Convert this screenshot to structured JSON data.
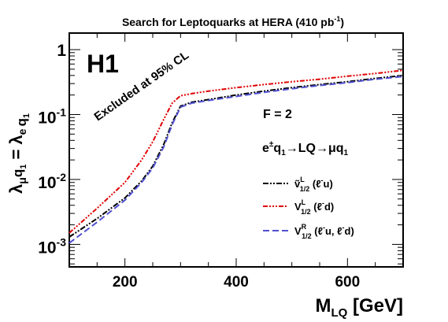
{
  "chart_data": {
    "type": "line",
    "title": "Search for Leptoquarks at HERA (410 pb",
    "title_sup": "-1",
    "title_end": ")",
    "logo": "H1",
    "annotation_excluded": "Excluded at 95% CL",
    "annotation_f": "F = 2",
    "process": {
      "a": "e",
      "a_sup": "±",
      "b": "q",
      "b_sub": "1",
      "arrow1": "→",
      "c": "LQ",
      "arrow2": "→",
      "d": "μq",
      "d_sub": "1"
    },
    "ylabel": {
      "lam1": "λ",
      "mu": "μ",
      "q1": "q",
      "q1_sub": "1",
      "eq": " = ",
      "lam2": "λ",
      "e": "e",
      "q2": "q",
      "q2_sub": "1"
    },
    "xlabel": {
      "m": "M",
      "m_sub": "LQ",
      "unit": " [GeV]"
    },
    "x_ticks": [
      "200",
      "400",
      "600"
    ],
    "x_tick_values": [
      200,
      400,
      600
    ],
    "y_ticks": [
      {
        "value": 1,
        "base": "1",
        "exp": ""
      },
      {
        "value": 0.1,
        "base": "10",
        "exp": "-1"
      },
      {
        "value": 0.01,
        "base": "10",
        "exp": "-2"
      },
      {
        "value": 0.001,
        "base": "10",
        "exp": "-3"
      }
    ],
    "xlim": [
      100,
      700
    ],
    "ylim": [
      0.00045,
      1.8
    ],
    "yscale": "log",
    "legend_position": "right",
    "series": [
      {
        "label": {
          "base": "ṽ",
          "sup": "L",
          "sub": "1/2",
          "paren": " (ℓ",
          "psup": "-",
          "tail": "u)"
        },
        "color": "#000000",
        "dash": "7,2,2,2,2,2",
        "x": [
          100,
          150,
          200,
          230,
          250,
          270,
          285,
          300,
          320,
          350,
          400,
          450,
          500,
          550,
          600,
          650,
          700
        ],
        "y": [
          0.0013,
          0.0025,
          0.0052,
          0.0095,
          0.016,
          0.035,
          0.075,
          0.135,
          0.155,
          0.17,
          0.2,
          0.23,
          0.26,
          0.29,
          0.32,
          0.36,
          0.4
        ]
      },
      {
        "label": {
          "base": "V",
          "sup": "L",
          "sub": "1/2",
          "paren": " (ℓ",
          "psup": "-",
          "tail": "d)"
        },
        "color": "#e00000",
        "dash": "6,2,2,2,2,2,2,2",
        "x": [
          100,
          150,
          200,
          230,
          250,
          270,
          285,
          300,
          320,
          350,
          400,
          450,
          500,
          550,
          600,
          650,
          700
        ],
        "y": [
          0.0015,
          0.0036,
          0.009,
          0.02,
          0.038,
          0.085,
          0.15,
          0.195,
          0.21,
          0.23,
          0.26,
          0.29,
          0.32,
          0.35,
          0.39,
          0.43,
          0.48
        ]
      },
      {
        "label": {
          "base": "V",
          "sup": "R",
          "sub": "1/2",
          "paren": " (ℓ",
          "psup": "-",
          "tail": "u, ℓ",
          "tsup": "-",
          "tail2": "d)"
        },
        "color": "#5050d0",
        "dash": "8,4",
        "x": [
          100,
          150,
          200,
          230,
          250,
          270,
          285,
          300,
          320,
          350,
          400,
          450,
          500,
          550,
          600,
          650,
          700
        ],
        "y": [
          0.00105,
          0.0022,
          0.0048,
          0.009,
          0.015,
          0.032,
          0.07,
          0.13,
          0.15,
          0.165,
          0.19,
          0.22,
          0.25,
          0.28,
          0.31,
          0.35,
          0.385
        ]
      }
    ]
  }
}
